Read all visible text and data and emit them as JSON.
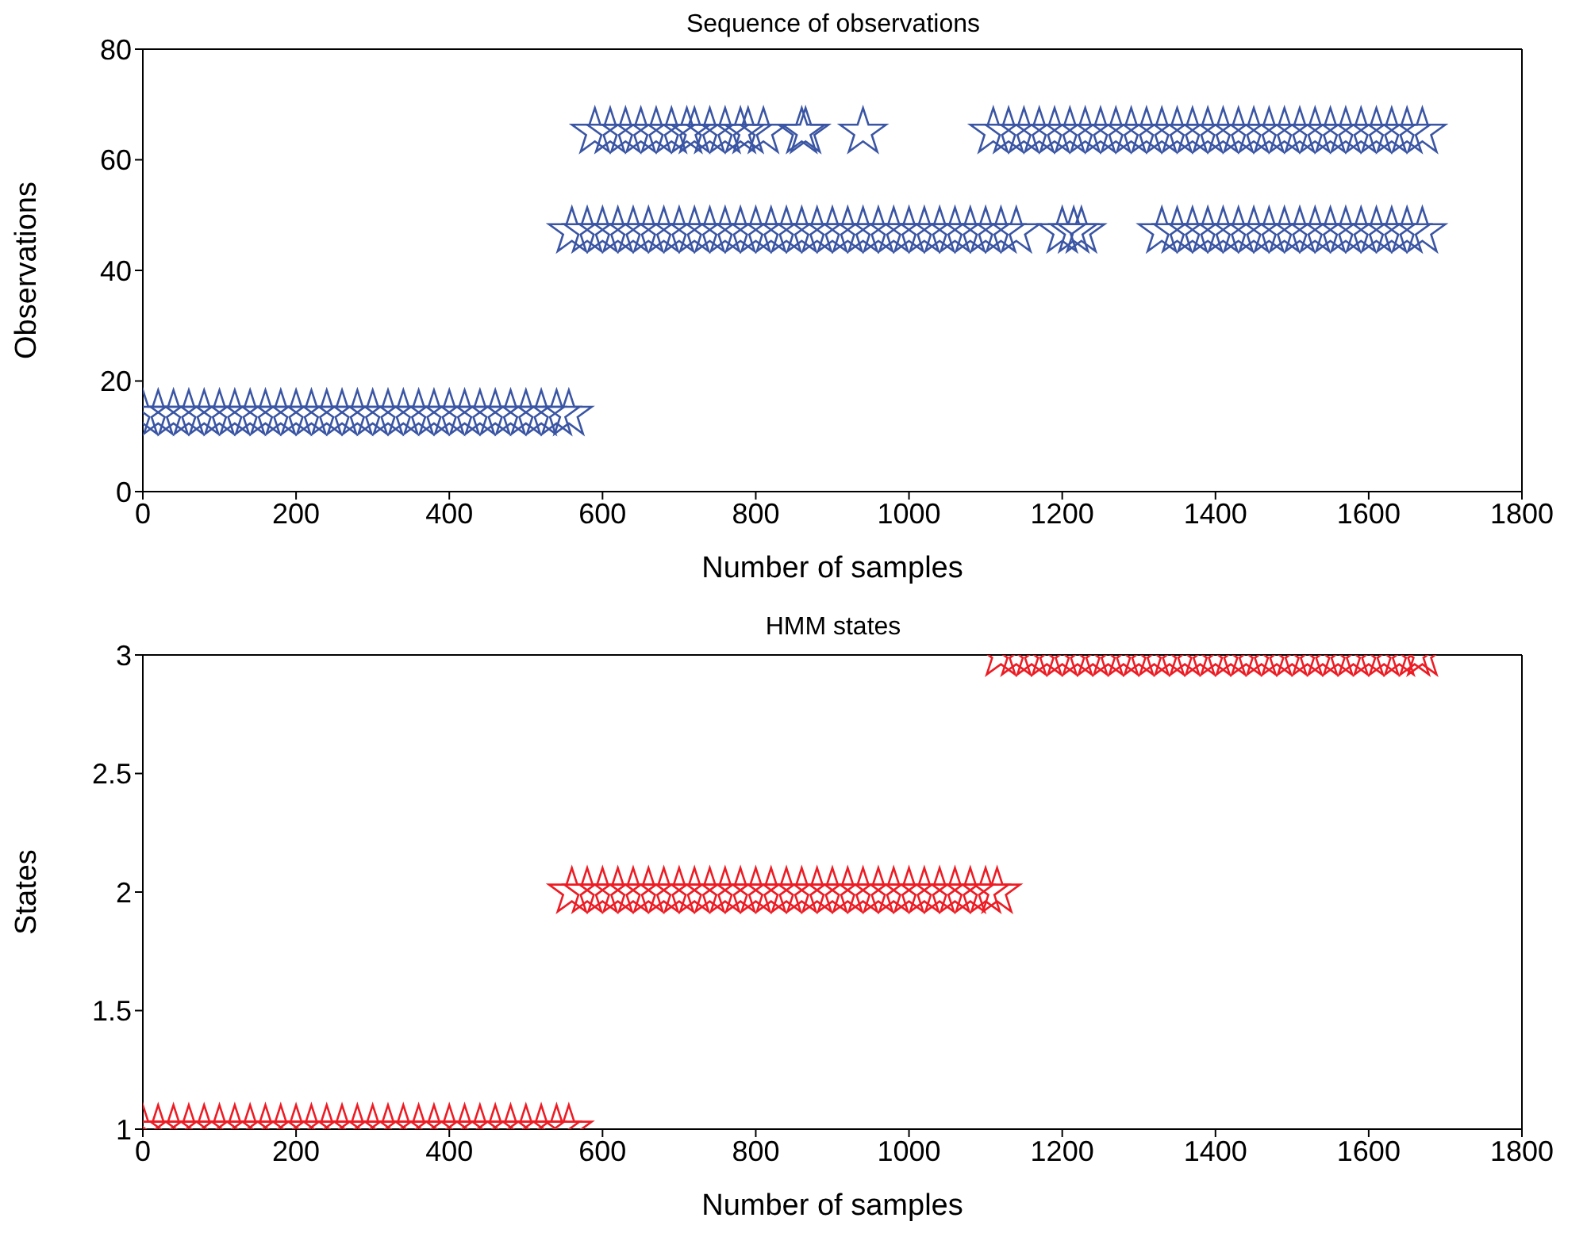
{
  "chart_data": [
    {
      "type": "scatter",
      "title": "Sequence of observations",
      "xlabel": "Number of samples",
      "ylabel": "Observations",
      "marker": "star",
      "xlim": [
        0,
        1800
      ],
      "xticks": [
        0,
        200,
        400,
        600,
        800,
        1000,
        1200,
        1400,
        1600,
        1800
      ],
      "ylim": [
        0,
        80
      ],
      "yticks": [
        0,
        20,
        40,
        60,
        80
      ],
      "series": [
        {
          "color": "#3a55a4",
          "x": [
            0,
            20,
            40,
            60,
            80,
            100,
            120,
            140,
            160,
            180,
            200,
            220,
            240,
            260,
            280,
            300,
            320,
            340,
            360,
            380,
            400,
            420,
            440,
            460,
            480,
            500,
            520,
            540,
            556
          ],
          "values": [
            14,
            14,
            14,
            14,
            14,
            14,
            14,
            14,
            14,
            14,
            14,
            14,
            14,
            14,
            14,
            14,
            14,
            14,
            14,
            14,
            14,
            14,
            14,
            14,
            14,
            14,
            14,
            14,
            14
          ]
        },
        {
          "color": "#3a55a4",
          "x": [
            560,
            580,
            600,
            620,
            640,
            660,
            680,
            700,
            720,
            740,
            760,
            780,
            800,
            820,
            840,
            860,
            880,
            900,
            920,
            940,
            960,
            980,
            1000,
            1020,
            1040,
            1060,
            1080,
            1100,
            1120,
            1140,
            1200,
            1215,
            1225,
            1330,
            1350,
            1370,
            1390,
            1410,
            1430,
            1450,
            1470,
            1490,
            1510,
            1530,
            1550,
            1570,
            1590,
            1610,
            1630,
            1650,
            1670
          ],
          "values": [
            47,
            47,
            47,
            47,
            47,
            47,
            47,
            47,
            47,
            47,
            47,
            47,
            47,
            47,
            47,
            47,
            47,
            47,
            47,
            47,
            47,
            47,
            47,
            47,
            47,
            47,
            47,
            47,
            47,
            47,
            47,
            47,
            47,
            47,
            47,
            47,
            47,
            47,
            47,
            47,
            47,
            47,
            47,
            47,
            47,
            47,
            47,
            47,
            47,
            47,
            47
          ]
        },
        {
          "color": "#3a55a4",
          "x": [
            590,
            610,
            630,
            650,
            670,
            690,
            710,
            720,
            740,
            760,
            780,
            790,
            810,
            860,
            865,
            940,
            1110,
            1130,
            1150,
            1170,
            1190,
            1210,
            1230,
            1250,
            1270,
            1290,
            1310,
            1330,
            1350,
            1370,
            1390,
            1410,
            1430,
            1450,
            1470,
            1490,
            1510,
            1530,
            1550,
            1570,
            1590,
            1610,
            1630,
            1650,
            1670
          ],
          "values": [
            65,
            65,
            65,
            65,
            65,
            65,
            65,
            65,
            65,
            65,
            65,
            65,
            65,
            65,
            65,
            65,
            65,
            65,
            65,
            65,
            65,
            65,
            65,
            65,
            65,
            65,
            65,
            65,
            65,
            65,
            65,
            65,
            65,
            65,
            65,
            65,
            65,
            65,
            65,
            65,
            65,
            65,
            65,
            65,
            65
          ]
        }
      ]
    },
    {
      "type": "scatter",
      "title": "HMM states",
      "xlabel": "Number of samples",
      "ylabel": "States",
      "marker": "star",
      "xlim": [
        0,
        1800
      ],
      "xticks": [
        0,
        200,
        400,
        600,
        800,
        1000,
        1200,
        1400,
        1600,
        1800
      ],
      "ylim": [
        1,
        3
      ],
      "yticks": [
        1,
        1.5,
        2,
        2.5,
        3
      ],
      "series": [
        {
          "color": "#ed1c24",
          "x": [
            0,
            20,
            40,
            60,
            80,
            100,
            120,
            140,
            160,
            180,
            200,
            220,
            240,
            260,
            280,
            300,
            320,
            340,
            360,
            380,
            400,
            420,
            440,
            460,
            480,
            500,
            520,
            540,
            556
          ],
          "values": [
            1,
            1,
            1,
            1,
            1,
            1,
            1,
            1,
            1,
            1,
            1,
            1,
            1,
            1,
            1,
            1,
            1,
            1,
            1,
            1,
            1,
            1,
            1,
            1,
            1,
            1,
            1,
            1,
            1
          ]
        },
        {
          "color": "#ed1c24",
          "x": [
            560,
            580,
            600,
            620,
            640,
            660,
            680,
            700,
            720,
            740,
            760,
            780,
            800,
            820,
            840,
            860,
            880,
            900,
            920,
            940,
            960,
            980,
            1000,
            1020,
            1040,
            1060,
            1080,
            1100,
            1115
          ],
          "values": [
            2,
            2,
            2,
            2,
            2,
            2,
            2,
            2,
            2,
            2,
            2,
            2,
            2,
            2,
            2,
            2,
            2,
            2,
            2,
            2,
            2,
            2,
            2,
            2,
            2,
            2,
            2,
            2,
            2
          ]
        },
        {
          "color": "#ed1c24",
          "x": [
            1120,
            1140,
            1160,
            1180,
            1200,
            1220,
            1240,
            1260,
            1280,
            1300,
            1320,
            1340,
            1360,
            1380,
            1400,
            1420,
            1440,
            1460,
            1480,
            1500,
            1520,
            1540,
            1560,
            1580,
            1600,
            1620,
            1640,
            1660,
            1670
          ],
          "values": [
            3,
            3,
            3,
            3,
            3,
            3,
            3,
            3,
            3,
            3,
            3,
            3,
            3,
            3,
            3,
            3,
            3,
            3,
            3,
            3,
            3,
            3,
            3,
            3,
            3,
            3,
            3,
            3,
            3
          ]
        }
      ]
    }
  ]
}
